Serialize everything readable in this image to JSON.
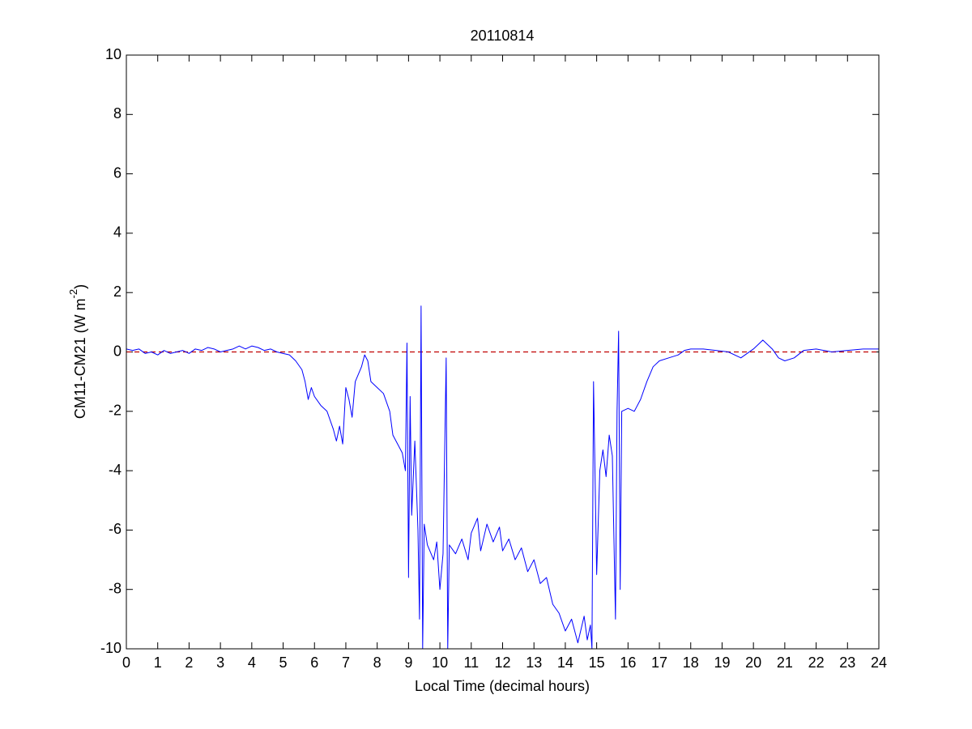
{
  "chart_data": {
    "type": "line",
    "title": "20110814",
    "xlabel": "Local Time (decimal hours)",
    "ylabel_parts": [
      "CM11-CM21 (W m",
      "-2",
      ")"
    ],
    "xlim": [
      0,
      24
    ],
    "ylim": [
      -10,
      10
    ],
    "xticks": [
      0,
      1,
      2,
      3,
      4,
      5,
      6,
      7,
      8,
      9,
      10,
      11,
      12,
      13,
      14,
      15,
      16,
      17,
      18,
      19,
      20,
      21,
      22,
      23,
      24
    ],
    "yticks": [
      -10,
      -8,
      -6,
      -4,
      -2,
      0,
      2,
      4,
      6,
      8,
      10
    ],
    "grid": false,
    "reference_line": {
      "y": 0,
      "color": "#c00000",
      "style": "dashed"
    },
    "x": [
      0,
      0.2,
      0.4,
      0.6,
      0.8,
      1.0,
      1.2,
      1.4,
      1.6,
      1.8,
      2.0,
      2.2,
      2.4,
      2.6,
      2.8,
      3.0,
      3.2,
      3.4,
      3.6,
      3.8,
      4.0,
      4.2,
      4.4,
      4.6,
      4.8,
      5.0,
      5.2,
      5.4,
      5.6,
      5.7,
      5.8,
      5.9,
      6.0,
      6.2,
      6.4,
      6.6,
      6.7,
      6.8,
      6.9,
      7.0,
      7.1,
      7.2,
      7.3,
      7.5,
      7.6,
      7.7,
      7.8,
      8.0,
      8.2,
      8.4,
      8.5,
      8.7,
      8.8,
      8.9,
      8.95,
      9.0,
      9.05,
      9.1,
      9.2,
      9.3,
      9.35,
      9.4,
      9.45,
      9.5,
      9.6,
      9.8,
      9.9,
      10.0,
      10.1,
      10.2,
      10.25,
      10.3,
      10.5,
      10.7,
      10.9,
      11.0,
      11.2,
      11.3,
      11.5,
      11.7,
      11.9,
      12.0,
      12.2,
      12.4,
      12.6,
      12.8,
      13.0,
      13.2,
      13.4,
      13.6,
      13.8,
      14.0,
      14.2,
      14.4,
      14.6,
      14.7,
      14.8,
      14.85,
      14.9,
      15.0,
      15.1,
      15.2,
      15.3,
      15.4,
      15.5,
      15.6,
      15.65,
      15.7,
      15.75,
      15.8,
      16.0,
      16.2,
      16.4,
      16.6,
      16.8,
      17.0,
      17.3,
      17.6,
      17.8,
      18.0,
      18.4,
      18.8,
      19.2,
      19.6,
      20.0,
      20.3,
      20.6,
      20.8,
      21.0,
      21.3,
      21.6,
      22.0,
      22.5,
      23.0,
      23.5,
      24.0
    ],
    "series": [
      {
        "color": "#0000ff",
        "values": [
          0.1,
          0.05,
          0.1,
          -0.05,
          0.0,
          -0.1,
          0.05,
          -0.05,
          0.0,
          0.05,
          -0.05,
          0.1,
          0.05,
          0.15,
          0.1,
          0.0,
          0.05,
          0.1,
          0.2,
          0.1,
          0.2,
          0.15,
          0.05,
          0.1,
          0.0,
          -0.05,
          -0.1,
          -0.3,
          -0.6,
          -1.0,
          -1.6,
          -1.2,
          -1.5,
          -1.8,
          -2.0,
          -2.6,
          -3.0,
          -2.5,
          -3.1,
          -1.2,
          -1.6,
          -2.2,
          -1.0,
          -0.5,
          -0.1,
          -0.3,
          -1.0,
          -1.2,
          -1.4,
          -2.0,
          -2.8,
          -3.2,
          -3.4,
          -4.0,
          0.3,
          -7.6,
          -1.5,
          -5.5,
          -3.0,
          -6.0,
          -9.0,
          1.55,
          -10,
          -5.8,
          -6.5,
          -7.0,
          -6.4,
          -8.0,
          -6.8,
          -0.2,
          -10,
          -6.5,
          -6.8,
          -6.3,
          -7.0,
          -6.1,
          -5.6,
          -6.7,
          -5.8,
          -6.4,
          -5.9,
          -6.7,
          -6.3,
          -7.0,
          -6.6,
          -7.4,
          -7.0,
          -7.8,
          -7.6,
          -8.5,
          -8.8,
          -9.4,
          -9.0,
          -9.8,
          -8.9,
          -9.7,
          -9.2,
          -10,
          -1.0,
          -7.5,
          -4.0,
          -3.3,
          -4.2,
          -2.8,
          -3.5,
          -9.0,
          -2.0,
          0.7,
          -8.0,
          -2.0,
          -1.9,
          -2.0,
          -1.6,
          -1.0,
          -0.5,
          -0.3,
          -0.2,
          -0.1,
          0.05,
          0.1,
          0.1,
          0.05,
          0.0,
          -0.2,
          0.1,
          0.4,
          0.1,
          -0.2,
          -0.3,
          -0.2,
          0.05,
          0.1,
          0.0,
          0.05,
          0.1,
          0.1
        ]
      }
    ]
  }
}
